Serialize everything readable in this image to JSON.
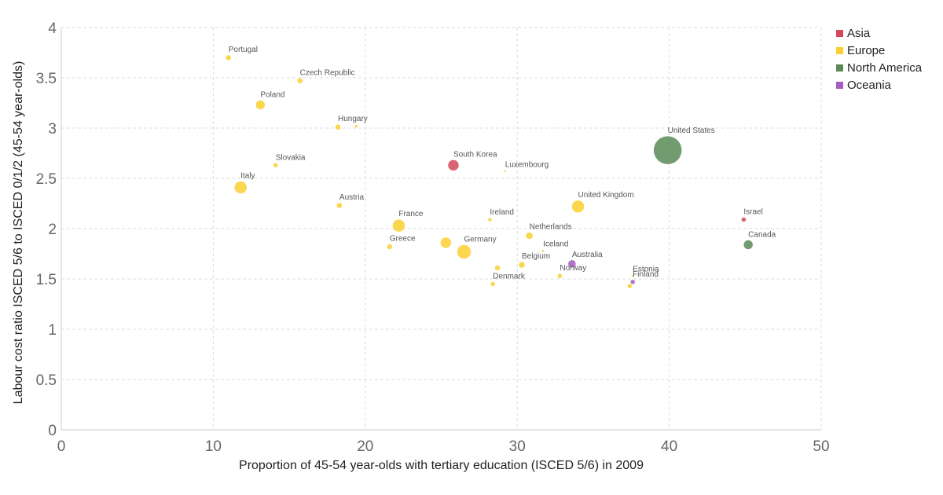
{
  "chart_data": {
    "type": "scatter",
    "title": "",
    "xlabel": "Proportion of 45-54 year-olds with tertiary education (ISCED 5/6) in 2009",
    "ylabel": "Labour cost ratio ISCED 5/6 to ISCED 0/1/2 (45-54 year-olds)",
    "xlim": [
      0,
      50
    ],
    "ylim": [
      0,
      4
    ],
    "x_ticks": [
      "0",
      "10",
      "20",
      "30",
      "40",
      "50"
    ],
    "y_ticks": [
      "0",
      "0.5",
      "1",
      "1.5",
      "2",
      "2.5",
      "3",
      "3.5",
      "4"
    ],
    "grid": true,
    "legend_position": "top-right",
    "series": [
      {
        "name": "Asia",
        "color": "#d1495b"
      },
      {
        "name": "Europe",
        "color": "#f9d030"
      },
      {
        "name": "North America",
        "color": "#5a8a57"
      },
      {
        "name": "Oceania",
        "color": "#a55dc2"
      }
    ],
    "points": [
      {
        "label": "Portugal",
        "x": 11.0,
        "y": 3.7,
        "size": 3.5,
        "region": "Europe"
      },
      {
        "label": "Czech Republic",
        "x": 15.7,
        "y": 3.47,
        "size": 3.5,
        "region": "Europe"
      },
      {
        "label": "Poland",
        "x": 13.1,
        "y": 3.23,
        "size": 6,
        "region": "Europe"
      },
      {
        "label": "Hungary",
        "x": 18.2,
        "y": 3.01,
        "size": 3.5,
        "region": "Europe"
      },
      {
        "label": "",
        "x": 19.4,
        "y": 3.02,
        "size": 2,
        "region": "Europe"
      },
      {
        "label": "Slovakia",
        "x": 14.1,
        "y": 2.63,
        "size": 3,
        "region": "Europe"
      },
      {
        "label": "Italy",
        "x": 11.8,
        "y": 2.41,
        "size": 8,
        "region": "Europe"
      },
      {
        "label": "Austria",
        "x": 18.3,
        "y": 2.23,
        "size": 3.5,
        "region": "Europe"
      },
      {
        "label": "South Korea",
        "x": 25.8,
        "y": 2.63,
        "size": 7,
        "region": "Asia"
      },
      {
        "label": "Luxembourg",
        "x": 29.2,
        "y": 2.57,
        "size": 1.5,
        "region": "Europe"
      },
      {
        "label": "United States",
        "x": 39.9,
        "y": 2.78,
        "size": 18,
        "region": "North America"
      },
      {
        "label": "United Kingdom",
        "x": 34.0,
        "y": 2.22,
        "size": 8,
        "region": "Europe"
      },
      {
        "label": "Israel",
        "x": 44.9,
        "y": 2.09,
        "size": 3,
        "region": "Asia"
      },
      {
        "label": "France",
        "x": 22.2,
        "y": 2.03,
        "size": 8,
        "region": "Europe"
      },
      {
        "label": "Ireland",
        "x": 28.2,
        "y": 2.09,
        "size": 2.5,
        "region": "Europe"
      },
      {
        "label": "Netherlands",
        "x": 30.8,
        "y": 1.93,
        "size": 4.5,
        "region": "Europe"
      },
      {
        "label": "Canada",
        "x": 45.2,
        "y": 1.84,
        "size": 6,
        "region": "North America"
      },
      {
        "label": "",
        "x": 25.3,
        "y": 1.86,
        "size": 7,
        "region": "Europe"
      },
      {
        "label": "Germany",
        "x": 26.5,
        "y": 1.77,
        "size": 9,
        "region": "Europe"
      },
      {
        "label": "Greece",
        "x": 21.6,
        "y": 1.82,
        "size": 3.5,
        "region": "Europe"
      },
      {
        "label": "Iceland",
        "x": 31.7,
        "y": 1.78,
        "size": 1.5,
        "region": "Europe"
      },
      {
        "label": "Australia",
        "x": 33.6,
        "y": 1.65,
        "size": 5,
        "region": "Oceania"
      },
      {
        "label": "Belgium",
        "x": 30.3,
        "y": 1.64,
        "size": 4,
        "region": "Europe"
      },
      {
        "label": "",
        "x": 28.7,
        "y": 1.61,
        "size": 3.5,
        "region": "Europe"
      },
      {
        "label": "Norway",
        "x": 32.8,
        "y": 1.53,
        "size": 3,
        "region": "Europe"
      },
      {
        "label": "Estonia",
        "x": 37.6,
        "y": 1.53,
        "size": 1.5,
        "region": "Europe"
      },
      {
        "label": "Finland",
        "x": 37.6,
        "y": 1.47,
        "size": 3,
        "region": "Oceania"
      },
      {
        "label": "",
        "x": 37.4,
        "y": 1.43,
        "size": 3,
        "region": "Europe"
      },
      {
        "label": "Denmark",
        "x": 28.4,
        "y": 1.45,
        "size": 3,
        "region": "Europe"
      }
    ]
  }
}
